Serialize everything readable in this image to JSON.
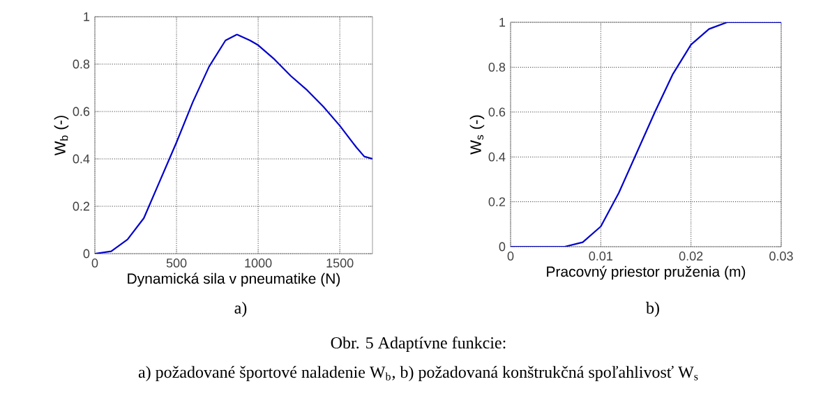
{
  "chart_data": [
    {
      "type": "line",
      "xlabel": "Dynamická sila v pneumatike (N)",
      "ylabel": "W$_{b}$ (-)",
      "x": [
        0,
        100,
        200,
        300,
        400,
        500,
        600,
        700,
        800,
        870,
        950,
        1000,
        1100,
        1200,
        1300,
        1400,
        1500,
        1600,
        1650,
        1700
      ],
      "series": [
        {
          "color": "#0000cc",
          "values": [
            0,
            0.01,
            0.06,
            0.15,
            0.31,
            0.47,
            0.64,
            0.79,
            0.9,
            0.925,
            0.9,
            0.88,
            0.82,
            0.75,
            0.69,
            0.62,
            0.54,
            0.45,
            0.41,
            0.4
          ]
        }
      ],
      "xlim": [
        0,
        1700
      ],
      "ylim": [
        0,
        1
      ],
      "xticks": [
        0,
        500,
        1000,
        1500
      ],
      "yticks": [
        0,
        0.2,
        0.4,
        0.6,
        0.8,
        1
      ],
      "grid": true,
      "annotations": [
        "a)",
        "Obr. 5  Adaptívne funkcie:",
        "a) požadované športové  naladenie W$_{b}$, b) požadovaná konštrukčná spoľahlivosť W$_{s}$"
      ]
    },
    {
      "type": "line",
      "xlabel": "Pracovný priestor pruženia (m)",
      "ylabel": "W$_{s}$ (-)",
      "x": [
        0,
        0.006,
        0.008,
        0.01,
        0.012,
        0.014,
        0.016,
        0.018,
        0.02,
        0.022,
        0.024,
        0.03
      ],
      "series": [
        {
          "color": "#0000cc",
          "values": [
            0,
            0,
            0.02,
            0.09,
            0.24,
            0.42,
            0.6,
            0.77,
            0.9,
            0.97,
            1,
            1
          ]
        }
      ],
      "xlim": [
        0,
        0.03
      ],
      "ylim": [
        0,
        1
      ],
      "xticks": [
        0,
        0.01,
        0.02,
        0.03
      ],
      "yticks": [
        0,
        0.2,
        0.4,
        0.6,
        0.8,
        1
      ],
      "grid": true,
      "annotations": [
        "b)"
      ]
    }
  ]
}
